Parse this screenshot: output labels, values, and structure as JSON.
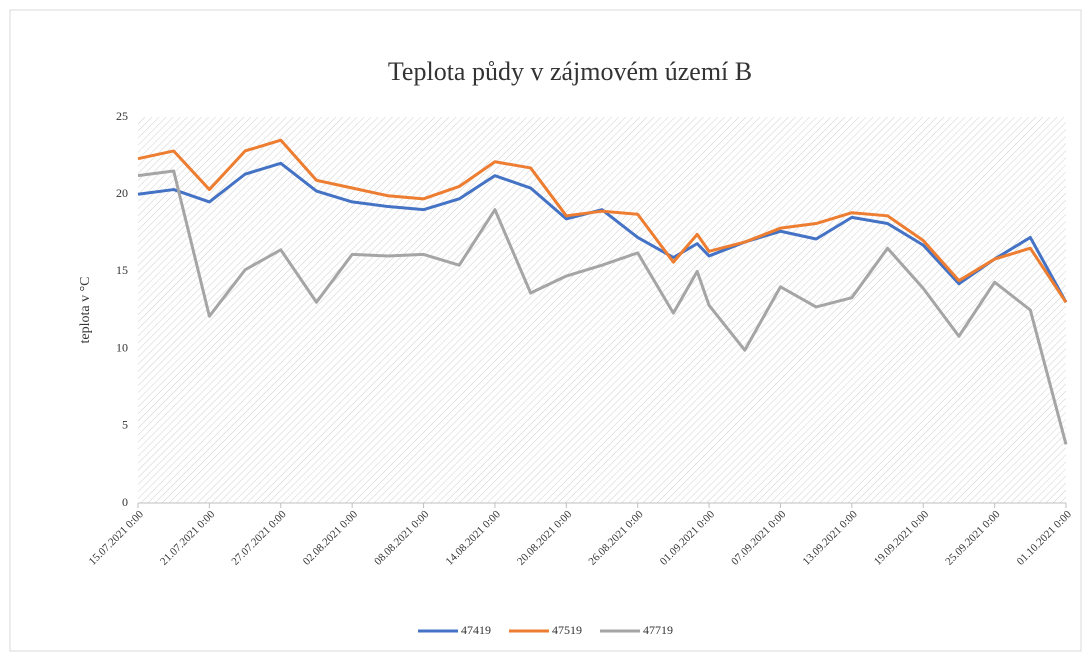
{
  "chart_data": {
    "type": "line",
    "title": "Teplota půdy v zájmovém území B",
    "y_label": "teplota  v °C",
    "x": [
      "15.07.2021 0:00",
      "18.07.2021 0:00",
      "21.07.2021 0:00",
      "24.07.2021 0:00",
      "27.07.2021 0:00",
      "30.07.2021 0:00",
      "02.08.2021 0:00",
      "05.08.2021 0:00",
      "08.08.2021 0:00",
      "11.08.2021 0:00",
      "14.08.2021 0:00",
      "17.08.2021 0:00",
      "20.08.2021 0:00",
      "23.08.2021 0:00",
      "26.08.2021 0:00",
      "29.08.2021 0:00",
      "31.08.2021 0:00",
      "01.09.2021 0:00",
      "04.09.2021 0:00",
      "07.09.2021 0:00",
      "10.09.2021 0:00",
      "13.09.2021 0:00",
      "16.09.2021 0:00",
      "19.09.2021 0:00",
      "22.09.2021 0:00",
      "25.09.2021 0:00",
      "28.09.2021 0:00",
      "01.10.2021 0:00"
    ],
    "series": [
      {
        "name": "47419",
        "color": "#4472c4",
        "values": [
          20.0,
          20.3,
          19.5,
          21.3,
          22.0,
          20.2,
          19.5,
          19.2,
          19.0,
          19.7,
          21.2,
          20.4,
          18.4,
          19.0,
          17.2,
          15.9,
          16.8,
          16.0,
          16.9,
          17.6,
          17.1,
          18.5,
          18.1,
          16.7,
          14.2,
          15.8,
          17.2,
          13.0
        ]
      },
      {
        "name": "47519",
        "color": "#ed7d31",
        "values": [
          22.3,
          22.8,
          20.3,
          22.8,
          23.5,
          20.9,
          20.4,
          19.9,
          19.7,
          20.5,
          22.1,
          21.7,
          18.6,
          18.9,
          18.7,
          15.6,
          17.4,
          16.3,
          16.9,
          17.8,
          18.1,
          18.8,
          18.6,
          17.0,
          14.4,
          15.8,
          16.5,
          13.0
        ]
      },
      {
        "name": "47719",
        "color": "#a5a5a5",
        "values": [
          21.2,
          21.5,
          12.1,
          15.1,
          16.4,
          13.0,
          16.1,
          16.0,
          16.1,
          15.4,
          19.0,
          13.6,
          14.7,
          15.4,
          16.2,
          12.3,
          15.0,
          12.8,
          9.9,
          14.0,
          12.7,
          13.3,
          16.5,
          13.9,
          10.8,
          14.3,
          12.5,
          3.8
        ]
      }
    ],
    "xlim": [
      "15.07.2021 0:00",
      "01.10.2021 0:00"
    ],
    "xticks": [
      "15.07.2021 0:00",
      "21.07.2021 0:00",
      "27.07.2021 0:00",
      "02.08.2021 0:00",
      "08.08.2021 0:00",
      "14.08.2021 0:00",
      "20.08.2021 0:00",
      "26.08.2021 0:00",
      "01.09.2021 0:00",
      "07.09.2021 0:00",
      "13.09.2021 0:00",
      "19.09.2021 0:00",
      "25.09.2021 0:00",
      "01.10.2021 0:00"
    ],
    "ylim": [
      0,
      25
    ],
    "yticks": [
      0,
      5,
      10,
      15,
      20,
      25
    ],
    "legend": "bottom"
  }
}
